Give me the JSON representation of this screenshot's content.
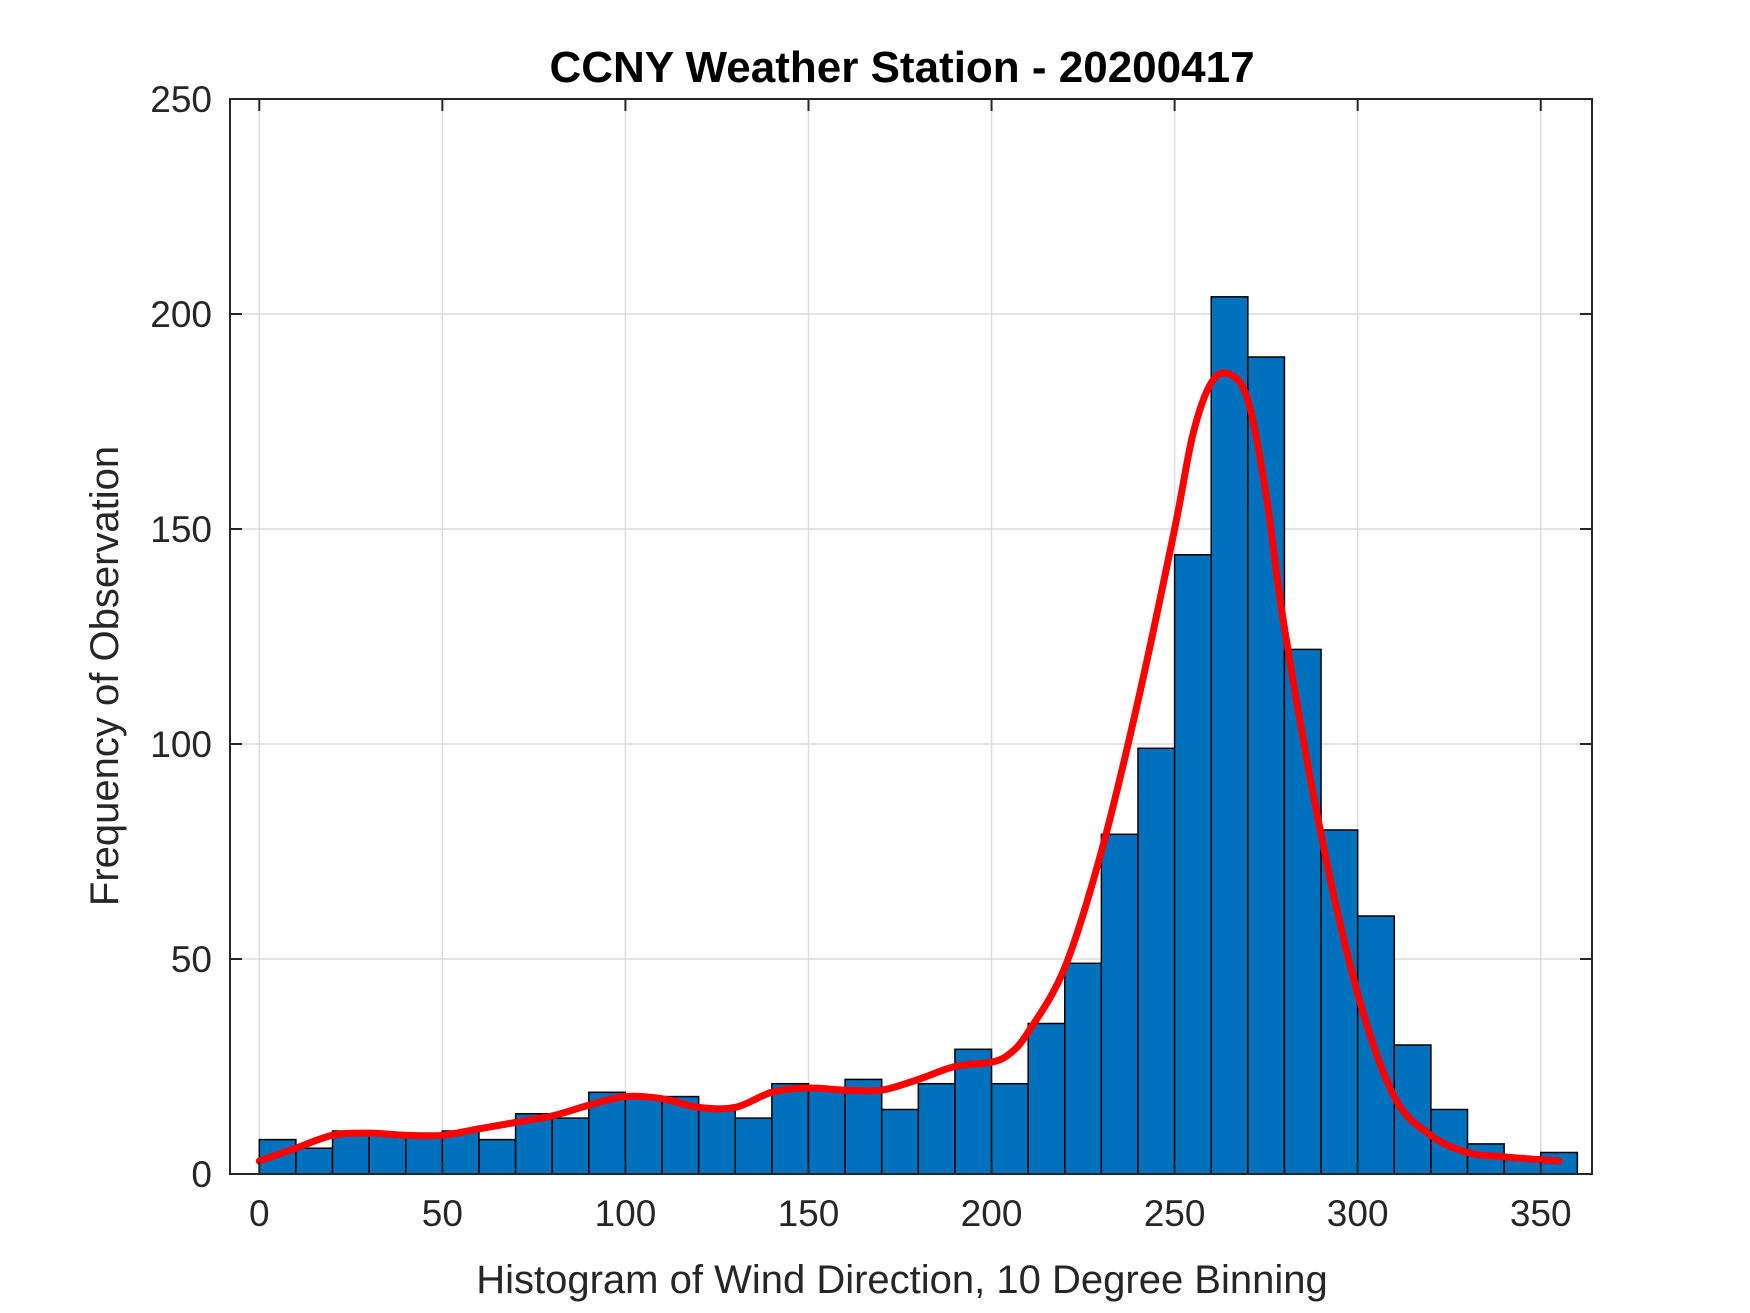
{
  "chart_data": {
    "type": "bar",
    "title": "CCNY Weather Station - 20200417",
    "xlabel": "Histogram of Wind Direction, 10 Degree Binning",
    "ylabel": "Frequency of Observation",
    "xlim": [
      -8,
      364
    ],
    "ylim": [
      0,
      250
    ],
    "xticks": [
      0,
      50,
      100,
      150,
      200,
      250,
      300,
      350
    ],
    "yticks": [
      0,
      50,
      100,
      150,
      200,
      250
    ],
    "grid": true,
    "bin_width": 10,
    "bin_starts": [
      0,
      10,
      20,
      30,
      40,
      50,
      60,
      70,
      80,
      90,
      100,
      110,
      120,
      130,
      140,
      150,
      160,
      170,
      180,
      190,
      200,
      210,
      220,
      230,
      240,
      250,
      260,
      270,
      280,
      290,
      300,
      310,
      320,
      330,
      340,
      350
    ],
    "values": [
      8,
      6,
      10,
      9,
      9,
      10,
      8,
      14,
      13,
      19,
      18,
      18,
      15,
      13,
      21,
      20,
      22,
      15,
      21,
      29,
      21,
      35,
      49,
      79,
      99,
      144,
      204,
      190,
      122,
      80,
      60,
      30,
      15,
      7,
      4,
      5
    ],
    "bar_color": "#0072BD",
    "fit_curve": {
      "color": "#FF0000",
      "x": [
        0,
        10,
        20,
        30,
        40,
        50,
        60,
        70,
        80,
        90,
        100,
        110,
        120,
        130,
        140,
        150,
        160,
        170,
        180,
        190,
        200,
        205,
        210,
        220,
        230,
        240,
        250,
        255,
        260,
        265,
        270,
        275,
        280,
        290,
        300,
        310,
        320,
        330,
        340,
        355
      ],
      "y": [
        3,
        6,
        9,
        9.5,
        9,
        9,
        10.5,
        12,
        13.5,
        16,
        18,
        17.5,
        15.5,
        15.5,
        19,
        20,
        19.5,
        19.5,
        22,
        25,
        26,
        28,
        33,
        48,
        75,
        110,
        150,
        172,
        184,
        186,
        180,
        158,
        127,
        79,
        42,
        18,
        9,
        5,
        4,
        3
      ]
    }
  }
}
